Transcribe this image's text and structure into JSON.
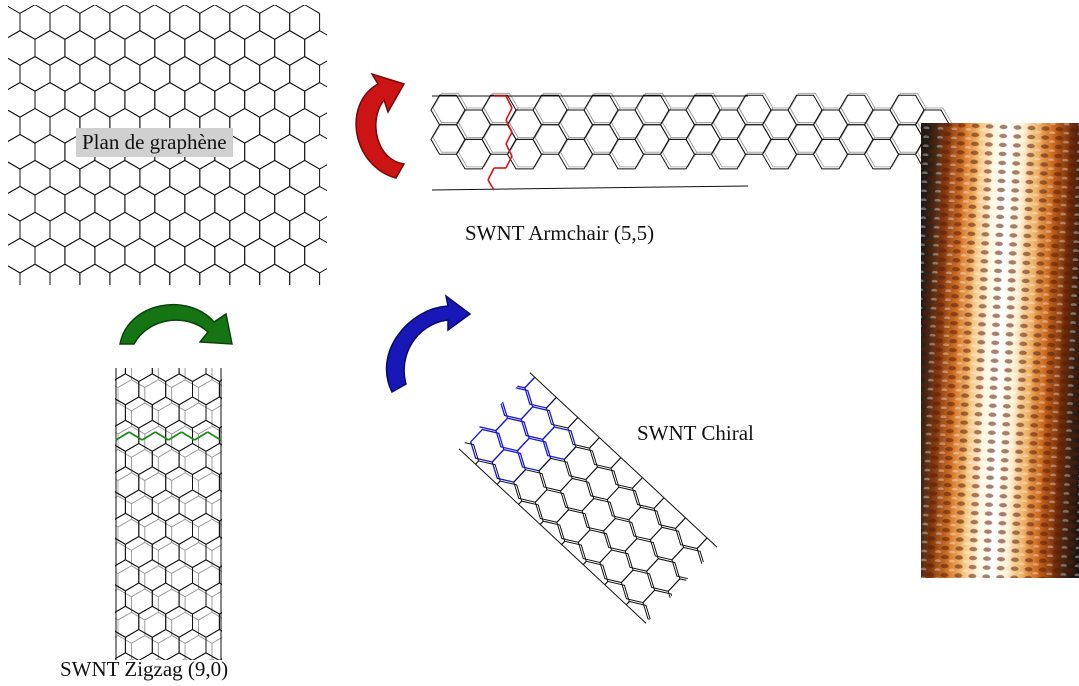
{
  "labels": {
    "graphene": "Plan de graphène",
    "armchair": "SWNT Armchair (5,5)",
    "chiral": "SWNT Chiral",
    "zigzag": "SWNT Zigzag (9,0)"
  },
  "colors": {
    "lattice": "#111111",
    "armchair_highlight": "#e01010",
    "zigzag_highlight": "#1a8a1a",
    "chiral_highlight": "#1a1ad8",
    "arrow_red": "#cc1414",
    "arrow_green": "#157515",
    "arrow_blue": "#1818b8",
    "label_background": "#d0d0d0"
  },
  "icons": [
    "curved-arrow-red",
    "curved-arrow-green",
    "curved-arrow-blue"
  ]
}
